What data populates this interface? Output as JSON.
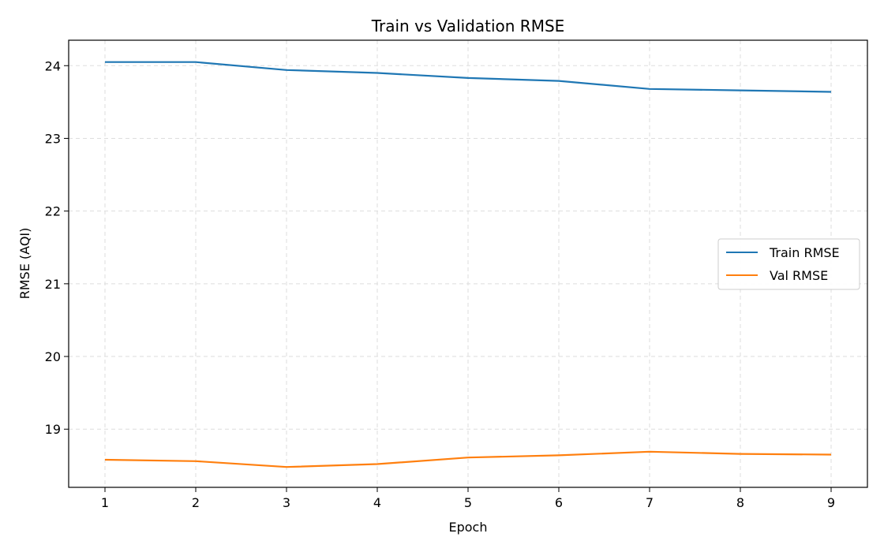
{
  "chart_data": {
    "type": "line",
    "title": "Train vs Validation RMSE",
    "xlabel": "Epoch",
    "ylabel": "RMSE (AQI)",
    "x": [
      1,
      2,
      3,
      4,
      5,
      6,
      7,
      8,
      9
    ],
    "xlim": [
      0.6,
      9.4
    ],
    "ylim": [
      18.2,
      24.35
    ],
    "xticks": [
      1,
      2,
      3,
      4,
      5,
      6,
      7,
      8,
      9
    ],
    "yticks": [
      19,
      20,
      21,
      22,
      23,
      24
    ],
    "grid": true,
    "legend_position": "center-right",
    "series": [
      {
        "name": "Train RMSE",
        "color": "#1f77b4",
        "values": [
          24.05,
          24.05,
          23.94,
          23.9,
          23.83,
          23.79,
          23.68,
          23.66,
          23.64
        ]
      },
      {
        "name": "Val RMSE",
        "color": "#ff7f0e",
        "values": [
          18.58,
          18.56,
          18.48,
          18.52,
          18.61,
          18.64,
          18.69,
          18.66,
          18.65
        ]
      }
    ]
  }
}
